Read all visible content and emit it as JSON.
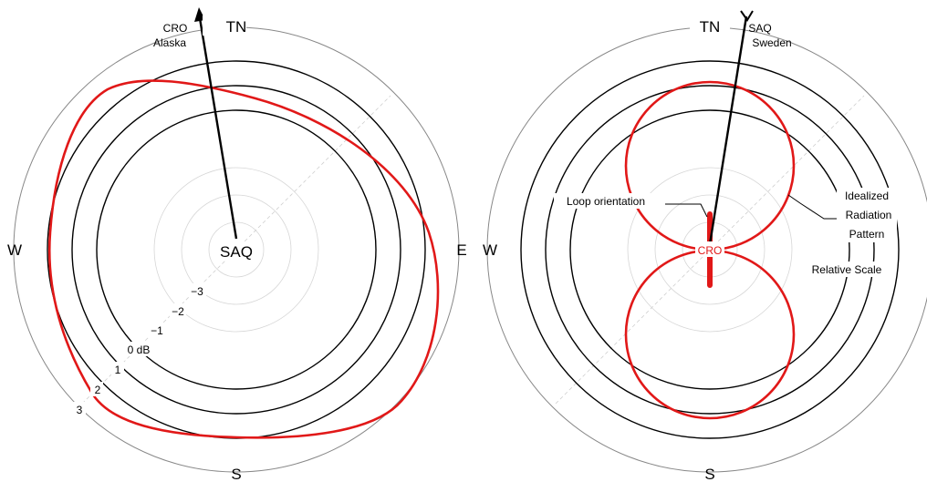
{
  "left_panel": {
    "compass": {
      "north": "TN",
      "south": "S",
      "east": "E",
      "west": "W"
    },
    "center_label": "SAQ",
    "target_label": [
      "CRO",
      "Alaska"
    ],
    "scale_labels": [
      "−3",
      "−2",
      "−1",
      "0 dB",
      "1",
      "2",
      "3"
    ]
  },
  "right_panel": {
    "compass": {
      "north": "TN",
      "south": "S",
      "west": "W"
    },
    "center_label": "CRO",
    "target_label": [
      "SAQ",
      "Sweden"
    ],
    "loop_label": "Loop orientation",
    "pattern_label": [
      "Idealized",
      "Radiation",
      "Pattern"
    ],
    "scale_label": "Relative Scale"
  },
  "colors": {
    "pattern": "#e11818",
    "rings": "#000000",
    "minor_rings": "#d6d6d6"
  }
}
